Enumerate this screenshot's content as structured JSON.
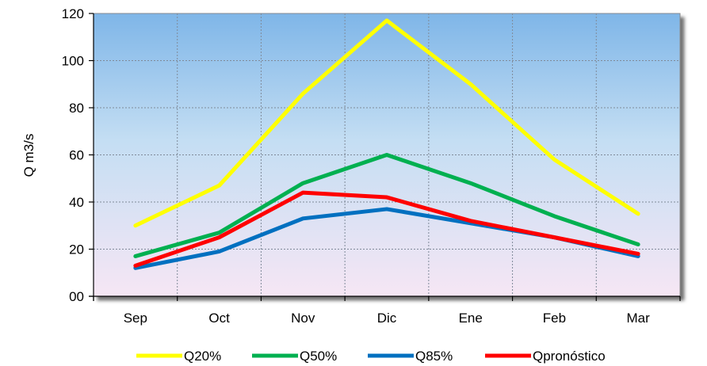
{
  "chart_data": {
    "type": "line",
    "categories": [
      "Sep",
      "Oct",
      "Nov",
      "Dic",
      "Ene",
      "Feb",
      "Mar"
    ],
    "ylabel": "Q m3/s",
    "ylim": [
      0,
      120
    ],
    "yticks": [
      0,
      20,
      40,
      60,
      80,
      100,
      120
    ],
    "ytick_labels": [
      "00",
      "20",
      "40",
      "60",
      "80",
      "100",
      "120"
    ],
    "grid": true,
    "legend_position": "bottom",
    "series": [
      {
        "name": "Q20%",
        "color": "#ffff00",
        "values": [
          30,
          47,
          86,
          117,
          90,
          58,
          35
        ]
      },
      {
        "name": "Q50%",
        "color": "#00b050",
        "values": [
          17,
          27,
          48,
          60,
          48,
          34,
          22
        ]
      },
      {
        "name": "Q85%",
        "color": "#0070c0",
        "values": [
          12,
          19,
          33,
          37,
          31,
          25,
          17
        ]
      },
      {
        "name": "Qpronóstico",
        "color": "#ff0000",
        "values": [
          13,
          25,
          44,
          42,
          32,
          25,
          18
        ]
      }
    ]
  }
}
